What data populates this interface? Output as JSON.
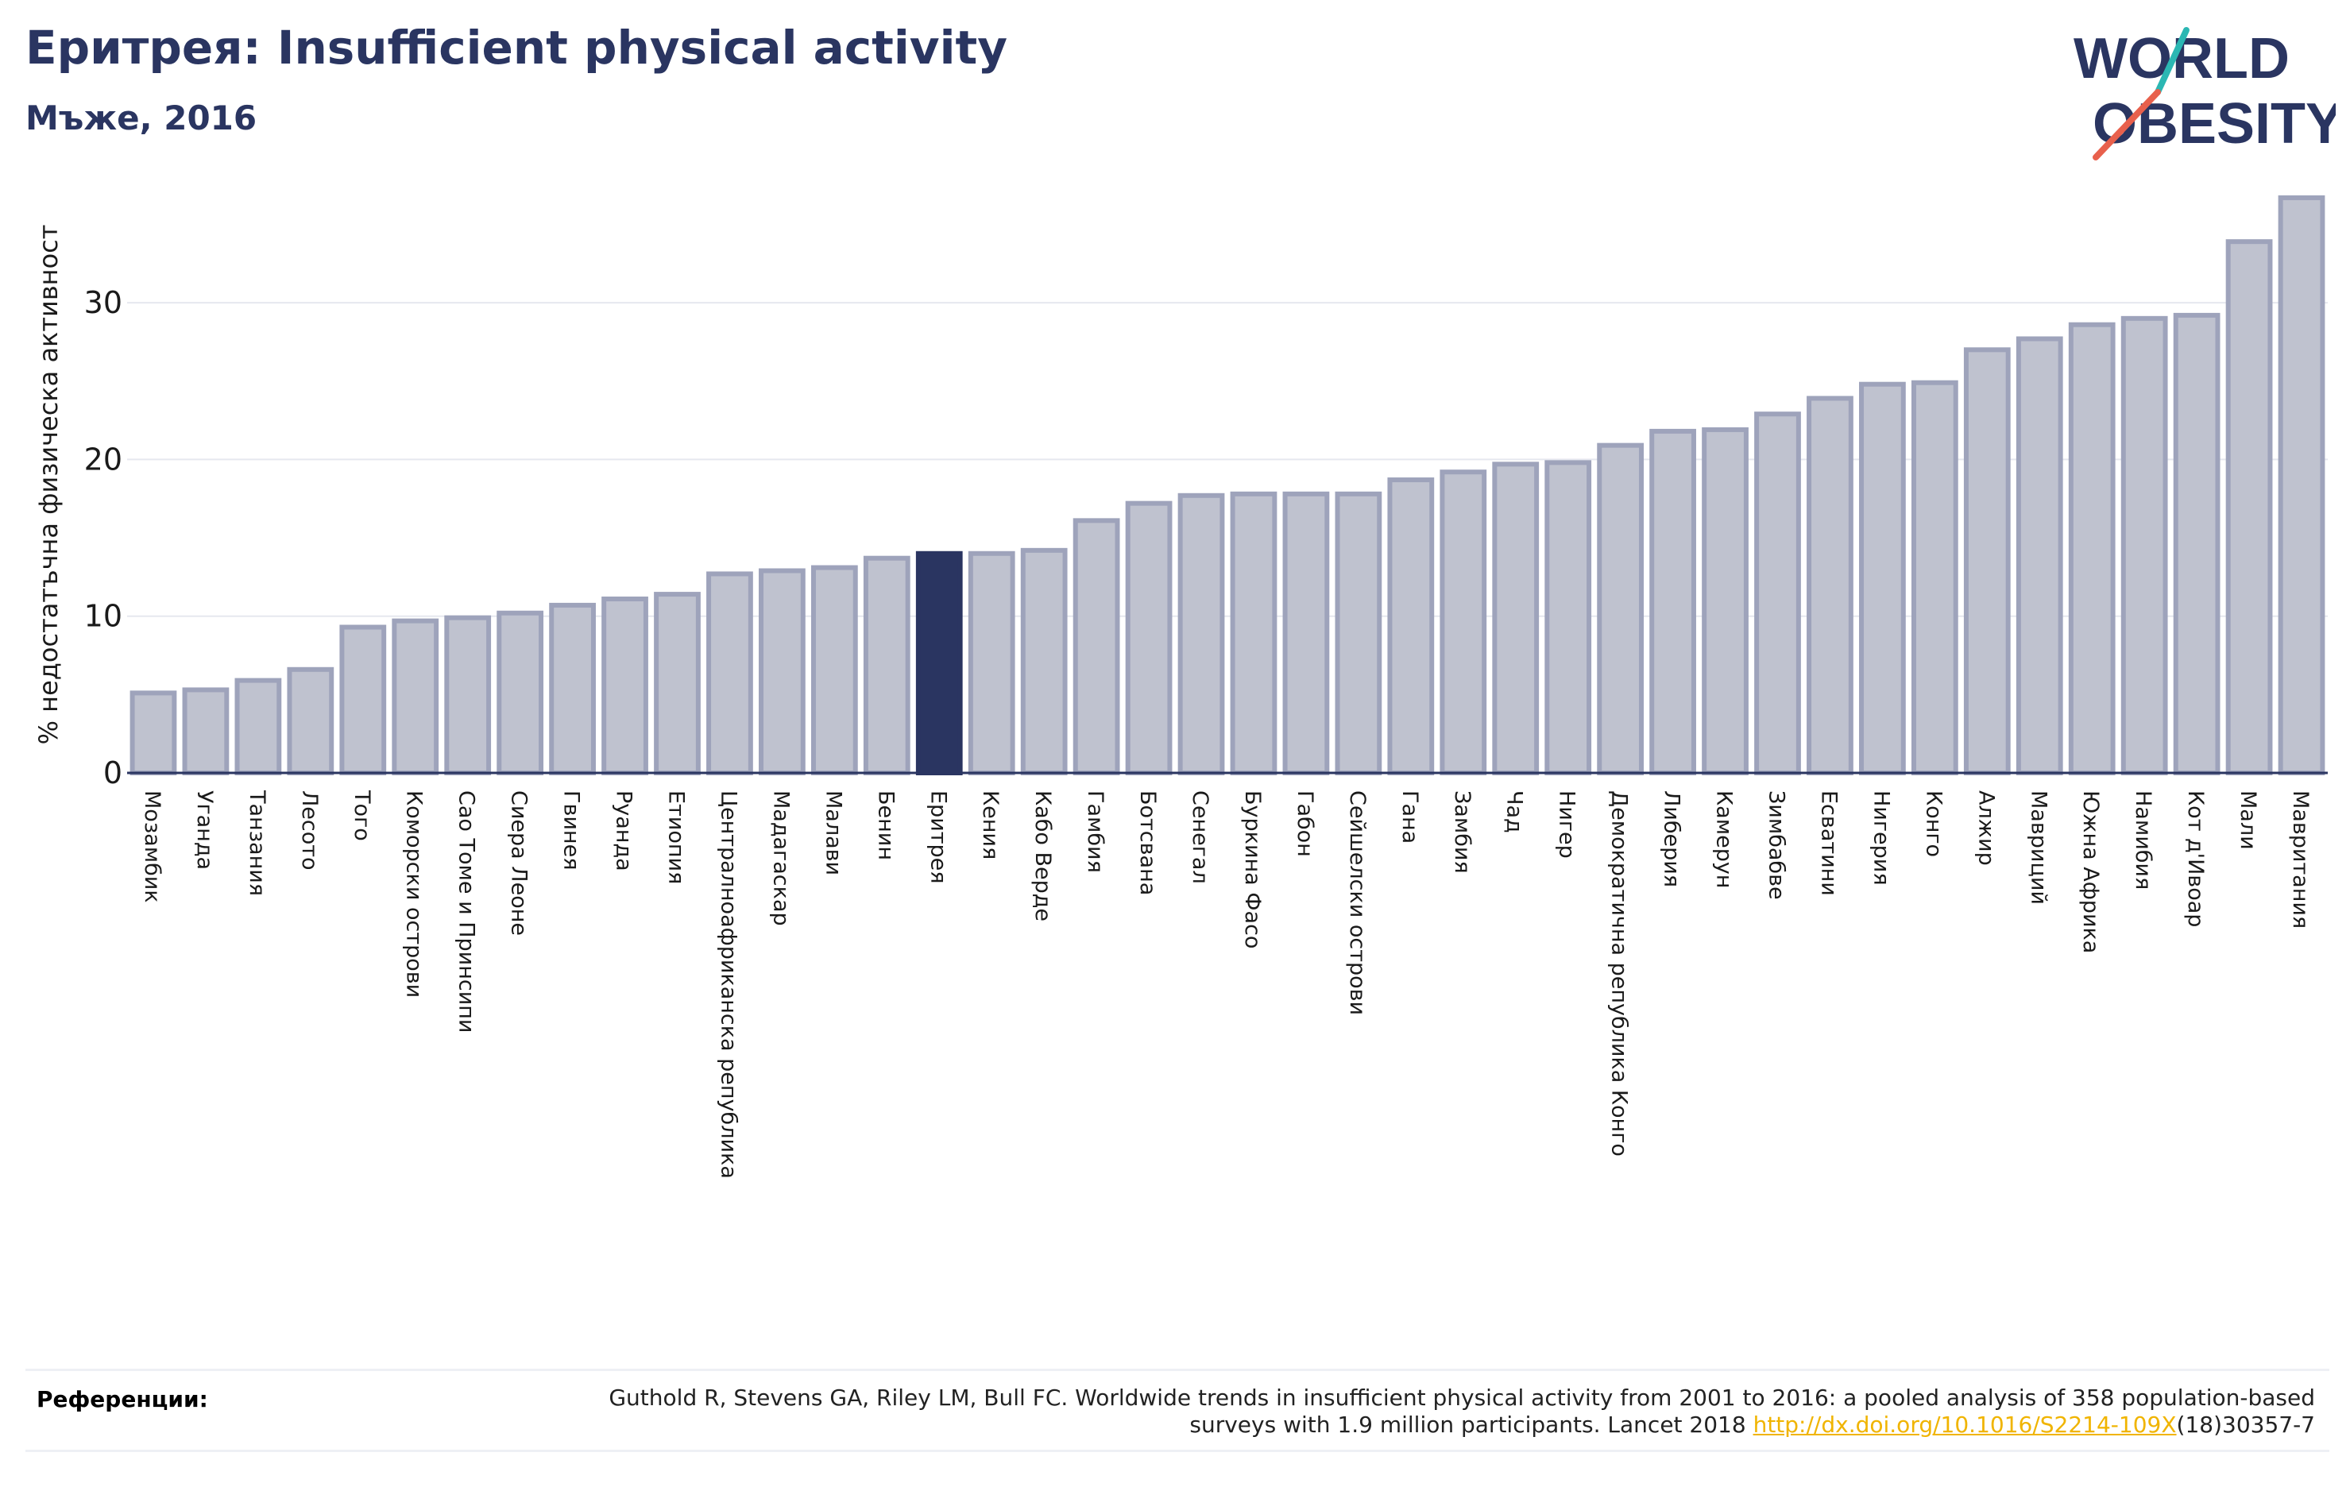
{
  "header": {
    "title": "Еритрея: Insufficient physical activity",
    "subtitle": "Мъже, 2016"
  },
  "logo": {
    "line1": "WORLD",
    "line2": "OBESITY"
  },
  "colors": {
    "highlight": "#2a3561",
    "bar_fill": "#bfc2cf",
    "bar_stroke": "#9ea3bb",
    "grid": "#e6e8ef",
    "logo_teal": "#2bb7b3",
    "logo_coral": "#e8604c"
  },
  "chart_data": {
    "type": "bar",
    "ylabel": "% недостатъчна физическа активност",
    "ylim": [
      0,
      37
    ],
    "yticks": [
      0,
      10,
      20,
      30
    ],
    "grid": true,
    "highlight": "Еритрея",
    "categories": [
      "Мозамбик",
      "Уганда",
      "Танзания",
      "Лесото",
      "Того",
      "Коморски острови",
      "Сао Томе и Принсипи",
      "Сиера Леоне",
      "Гвинея",
      "Руанда",
      "Етиопия",
      "Централноафриканска република",
      "Мадагаскар",
      "Малави",
      "Бенин",
      "Еритрея",
      "Кения",
      "Кабо Верде",
      "Гамбия",
      "Ботсвана",
      "Сенегал",
      "Буркина Фасо",
      "Габон",
      "Сейшелски острови",
      "Гана",
      "Замбия",
      "Чад",
      "Нигер",
      "Демократична република Конго",
      "Либерия",
      "Камерун",
      "Зимбабве",
      "Есватини",
      "Нигерия",
      "Конго",
      "Алжир",
      "Мавриций",
      "Южна Африка",
      "Намибия",
      "Кот д'Ивоар",
      "Мали",
      "Мавритания"
    ],
    "values": [
      5.1,
      5.3,
      5.9,
      6.6,
      9.3,
      9.7,
      9.9,
      10.2,
      10.7,
      11.1,
      11.4,
      12.7,
      12.9,
      13.1,
      13.7,
      14.0,
      14.0,
      14.2,
      16.1,
      17.2,
      17.7,
      17.8,
      17.8,
      17.8,
      18.7,
      19.2,
      19.7,
      19.8,
      20.9,
      21.8,
      21.9,
      22.9,
      23.9,
      24.8,
      24.9,
      27.0,
      27.7,
      28.6,
      29.0,
      29.2,
      33.9,
      36.7
    ]
  },
  "references": {
    "label": "Референции:",
    "text_before": "Guthold R, Stevens GA, Riley LM, Bull FC. Worldwide trends in insufficient physical activity from 2001 to 2016: a pooled analysis of 358 population-based surveys with 1.9 million participants. Lancet 2018 ",
    "link": "http://dx.doi.org/10.1016/S2214-109X",
    "text_after": "(18)30357-7"
  }
}
